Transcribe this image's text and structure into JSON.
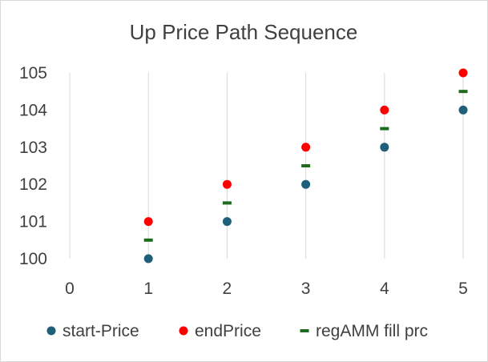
{
  "chart_data": {
    "type": "scatter",
    "title": "Up Price Path Sequence",
    "xlabel": "",
    "ylabel": "",
    "xlim": [
      0,
      5
    ],
    "ylim": [
      100,
      105
    ],
    "x_ticks": [
      "0",
      "1",
      "2",
      "3",
      "4",
      "5"
    ],
    "y_ticks": [
      "100",
      "101",
      "102",
      "103",
      "104",
      "105"
    ],
    "grid": "vertical",
    "legend_position": "bottom",
    "series": [
      {
        "name": "start-Price",
        "marker": "circle",
        "color": "#1f5f7a",
        "points": [
          [
            1,
            100
          ],
          [
            2,
            101
          ],
          [
            3,
            102
          ],
          [
            4,
            103
          ],
          [
            5,
            104
          ]
        ]
      },
      {
        "name": "endPrice",
        "marker": "circle",
        "color": "#ff0000",
        "points": [
          [
            1,
            101
          ],
          [
            2,
            102
          ],
          [
            3,
            103
          ],
          [
            4,
            104
          ],
          [
            5,
            105
          ]
        ]
      },
      {
        "name": "regAMM fill prc",
        "marker": "dash",
        "color": "#1e6b1e",
        "points": [
          [
            1,
            100.5
          ],
          [
            2,
            101.5
          ],
          [
            3,
            102.5
          ],
          [
            4,
            103.5
          ],
          [
            5,
            104.5
          ]
        ]
      }
    ]
  }
}
